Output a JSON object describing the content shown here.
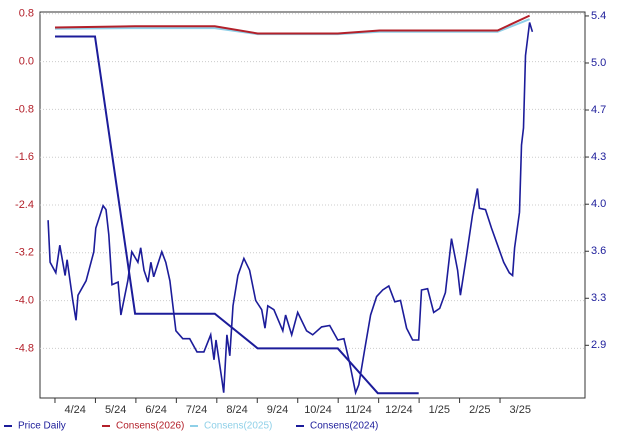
{
  "chart_data": {
    "type": "line",
    "xlim": [
      -0.37,
      13.1
    ],
    "xticks": [
      {
        "value": 0,
        "label": "4/24"
      },
      {
        "value": 1,
        "label": "5/24"
      },
      {
        "value": 2,
        "label": "6/24"
      },
      {
        "value": 3,
        "label": "7/24"
      },
      {
        "value": 4,
        "label": "8/24"
      },
      {
        "value": 5,
        "label": "9/24"
      },
      {
        "value": 6,
        "label": "10/24"
      },
      {
        "value": 7,
        "label": "11/24"
      },
      {
        "value": 8,
        "label": "12/24"
      },
      {
        "value": 9,
        "label": "1/25"
      },
      {
        "value": 10,
        "label": "2/25"
      },
      {
        "value": 11,
        "label": "3/25"
      }
    ],
    "ylim": [
      -5.63,
      0.83
    ],
    "yticks": [
      0.8,
      {
        "value": 0,
        "label": "0.0"
      },
      -0.8,
      -1.6,
      -2.4,
      -3.2,
      {
        "value": -4,
        "label": "-4.0"
      },
      -4.8
    ],
    "y2lim": [
      2.5,
      5.43
    ],
    "y2ticks": [
      5.4,
      {
        "value": 5.043,
        "label": "5.0"
      },
      {
        "value": 4.686,
        "label": "4.7"
      },
      {
        "value": 4.329,
        "label": "4.3"
      },
      {
        "value": 3.971,
        "label": "4.0"
      },
      {
        "value": 3.614,
        "label": "3.6"
      },
      {
        "value": 3.257,
        "label": "3.3"
      },
      2.9
    ],
    "grid": true,
    "series": [
      {
        "name": "Price Daily",
        "color": "#1c1c9a",
        "axis": "y2",
        "x": [
          -0.17,
          -0.12,
          0.02,
          0.12,
          0.25,
          0.3,
          0.44,
          0.52,
          0.57,
          0.77,
          0.96,
          1.01,
          1.19,
          1.26,
          1.33,
          1.41,
          1.56,
          1.63,
          1.8,
          1.9,
          2.05,
          2.12,
          2.2,
          2.3,
          2.37,
          2.44,
          2.64,
          2.74,
          2.84,
          2.99,
          3.16,
          3.33,
          3.51,
          3.68,
          3.85,
          3.93,
          3.98,
          4.12,
          4.17,
          4.25,
          4.32,
          4.4,
          4.52,
          4.67,
          4.81,
          4.96,
          5.11,
          5.19,
          5.26,
          5.41,
          5.63,
          5.7,
          5.85,
          6.0,
          6.22,
          6.37,
          6.59,
          6.79,
          6.99,
          7.14,
          7.28,
          7.43,
          7.51,
          7.65,
          7.8,
          7.95,
          8.1,
          8.25,
          8.4,
          8.54,
          8.69,
          8.84,
          8.99,
          9.06,
          9.21,
          9.36,
          9.51,
          9.65,
          9.8,
          9.95,
          10.02,
          10.17,
          10.32,
          10.44,
          10.49,
          10.64,
          10.79,
          10.94,
          11.09,
          11.23,
          11.31,
          11.36,
          11.48,
          11.53,
          11.58,
          11.63,
          11.73,
          11.8
        ],
        "values": [
          3.85,
          3.53,
          3.45,
          3.66,
          3.43,
          3.55,
          3.24,
          3.09,
          3.28,
          3.39,
          3.61,
          3.79,
          3.96,
          3.93,
          3.74,
          3.36,
          3.38,
          3.13,
          3.39,
          3.61,
          3.53,
          3.64,
          3.47,
          3.38,
          3.53,
          3.42,
          3.61,
          3.53,
          3.39,
          3.01,
          2.95,
          2.95,
          2.85,
          2.85,
          2.98,
          2.79,
          2.94,
          2.65,
          2.54,
          2.98,
          2.82,
          3.2,
          3.43,
          3.56,
          3.47,
          3.24,
          3.17,
          3.03,
          3.2,
          3.17,
          3.01,
          3.13,
          2.98,
          3.15,
          3.01,
          2.98,
          3.04,
          3.05,
          2.94,
          2.95,
          2.77,
          2.54,
          2.6,
          2.86,
          3.13,
          3.27,
          3.32,
          3.35,
          3.23,
          3.24,
          3.03,
          2.94,
          2.94,
          3.32,
          3.33,
          3.15,
          3.18,
          3.3,
          3.71,
          3.47,
          3.28,
          3.58,
          3.89,
          4.09,
          3.94,
          3.93,
          3.79,
          3.66,
          3.53,
          3.45,
          3.43,
          3.64,
          3.91,
          4.42,
          4.55,
          5.1,
          5.35,
          5.28
        ]
      },
      {
        "name": "Consens(2026)",
        "color": "#b3202a",
        "x": [
          0,
          1.98,
          3.95,
          5.01,
          6.99,
          8.02,
          10.94,
          11.73
        ],
        "values": [
          0.57,
          0.59,
          0.59,
          0.47,
          0.47,
          0.52,
          0.52,
          0.77
        ]
      },
      {
        "name": "Consens(2025)",
        "color": "#8fd0e8",
        "x": [
          0,
          1.98,
          3.95,
          5.01,
          6.99,
          8.02,
          10.94,
          11.73
        ],
        "values": [
          0.55,
          0.56,
          0.56,
          0.46,
          0.46,
          0.5,
          0.5,
          0.71
        ]
      },
      {
        "name": "Consens(2024)",
        "color": "#1c1c9a",
        "x": [
          0,
          0.99,
          1.98,
          3.95,
          5.01,
          6.99,
          7.98,
          8.99
        ],
        "values": [
          0.42,
          0.42,
          -4.22,
          -4.22,
          -4.8,
          -4.8,
          -5.55,
          -5.55
        ]
      }
    ]
  }
}
